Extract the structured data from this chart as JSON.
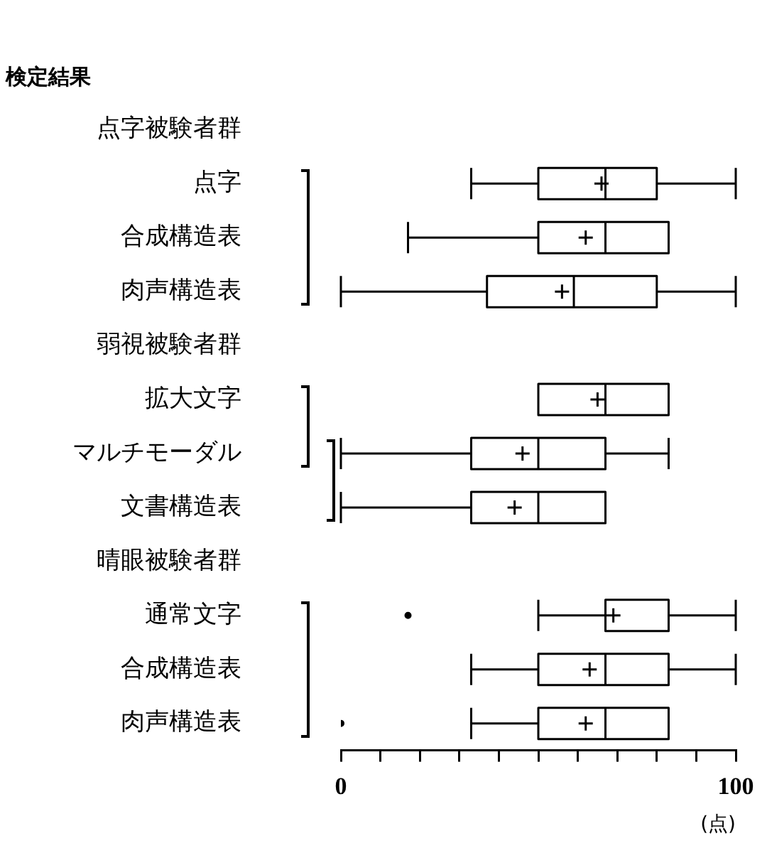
{
  "chart_data": {
    "type": "box",
    "orientation": "horizontal",
    "title": "検定結果",
    "xlabel": "(点)",
    "categories": [
      "点字被験者群",
      "点字",
      "合成構造表",
      "肉声構造表",
      "弱視被験者群",
      "拡大文字",
      "マルチモーダル",
      "文書構造表",
      "晴眼被験者群",
      "通常文字",
      "合成構造表",
      "肉声構造表"
    ],
    "boxes": [
      null,
      {
        "low": 33,
        "q1": 50,
        "median": 67,
        "q3": 80,
        "high": 100,
        "mean": 66
      },
      {
        "low": 17,
        "q1": 50,
        "median": 67,
        "q3": 83,
        "high": 83,
        "mean": 62
      },
      {
        "low": 0,
        "q1": 37,
        "median": 59,
        "q3": 80,
        "high": 100,
        "mean": 56
      },
      null,
      {
        "low": 50,
        "q1": 50,
        "median": 67,
        "q3": 83,
        "high": 83,
        "mean": 65
      },
      {
        "low": 0,
        "q1": 33,
        "median": 50,
        "q3": 67,
        "high": 83,
        "mean": 46
      },
      {
        "low": 0,
        "q1": 33,
        "median": 50,
        "q3": 67,
        "high": 67,
        "mean": 44
      },
      null,
      {
        "low": 50,
        "q1": 67,
        "median": 67,
        "q3": 83,
        "high": 100,
        "mean": 69,
        "outliers": [
          17
        ]
      },
      {
        "low": 33,
        "q1": 50,
        "median": 67,
        "q3": 83,
        "high": 100,
        "mean": 63
      },
      {
        "low": 33,
        "q1": 50,
        "median": 67,
        "q3": 83,
        "high": 83,
        "mean": 62,
        "outliers": [
          0
        ]
      }
    ],
    "xlim": [
      0,
      100
    ],
    "xticks": [
      0,
      {
        "value": 10,
        "label": null
      },
      {
        "value": 20,
        "label": null
      },
      {
        "value": 30,
        "label": null
      },
      {
        "value": 40,
        "label": null
      },
      {
        "value": 50,
        "label": null
      },
      {
        "value": 60,
        "label": null
      },
      {
        "value": 70,
        "label": null
      },
      {
        "value": 80,
        "label": null
      },
      {
        "value": 90,
        "label": null
      },
      100
    ],
    "grid": false,
    "legend": false
  }
}
